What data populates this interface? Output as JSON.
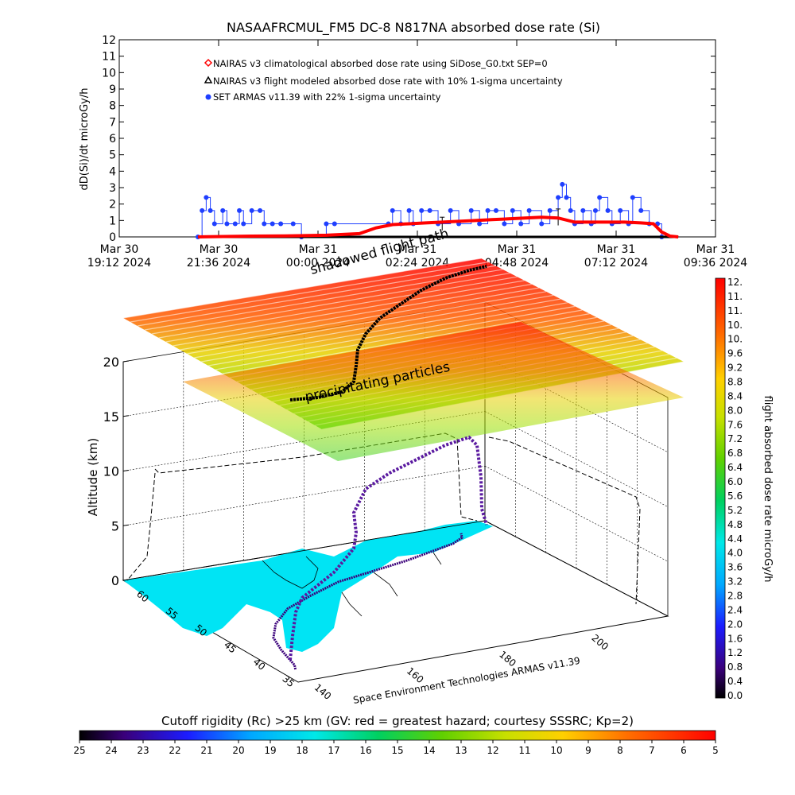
{
  "chart_data": [
    {
      "type": "line",
      "title": "NASAAFRCMUL_FM5 DC-8   N817NA absorbed dose rate (Si)",
      "ylabel": "dD(Si)/dt microGy/h",
      "ylim": [
        0,
        12
      ],
      "yticks": [
        "0",
        "1",
        "2",
        "3",
        "4",
        "5",
        "6",
        "7",
        "8",
        "9",
        "10",
        "11",
        "12"
      ],
      "xlim_hours": [
        0,
        14.4
      ],
      "xticks": [
        {
          "h": 0.0,
          "line1": "Mar 30",
          "line2": "19:12 2024"
        },
        {
          "h": 2.4,
          "line1": "Mar 30",
          "line2": "21:36 2024"
        },
        {
          "h": 4.8,
          "line1": "Mar 31",
          "line2": "00:00 2024"
        },
        {
          "h": 7.2,
          "line1": "Mar 31",
          "line2": "02:24 2024"
        },
        {
          "h": 9.6,
          "line1": "Mar 31",
          "line2": "04:48 2024"
        },
        {
          "h": 12.0,
          "line1": "Mar 31",
          "line2": "07:12 2024"
        },
        {
          "h": 14.4,
          "line1": "Mar 31",
          "line2": "09:36 2024"
        }
      ],
      "legend_position": "top-left",
      "series": [
        {
          "name": "NAIRAS v3 climatological absorbed dose rate using SiDose_G0.txt SEP=0",
          "marker": "diamond",
          "color": "#ff0000",
          "points": [
            [
              1.9,
              0.0
            ],
            [
              3.2,
              0.05
            ],
            [
              4.0,
              0.06
            ],
            [
              5.0,
              0.1
            ],
            [
              5.8,
              0.2
            ],
            [
              6.2,
              0.55
            ],
            [
              6.6,
              0.75
            ],
            [
              7.0,
              0.8
            ],
            [
              7.4,
              0.85
            ],
            [
              7.8,
              0.9
            ],
            [
              8.2,
              0.95
            ],
            [
              8.6,
              1.0
            ],
            [
              9.0,
              1.05
            ],
            [
              9.4,
              1.1
            ],
            [
              9.8,
              1.15
            ],
            [
              10.2,
              1.2
            ],
            [
              10.6,
              1.15
            ],
            [
              11.0,
              0.9
            ],
            [
              11.4,
              0.9
            ],
            [
              11.8,
              0.9
            ],
            [
              12.2,
              0.9
            ],
            [
              12.6,
              0.85
            ],
            [
              12.9,
              0.8
            ],
            [
              13.1,
              0.3
            ],
            [
              13.3,
              0.05
            ],
            [
              13.5,
              0.0
            ]
          ]
        },
        {
          "name": "NAIRAS v3 flight modeled absorbed dose rate with 10% 1-sigma uncertainty",
          "marker": "triangle",
          "color": "#000000",
          "points": [
            [
              1.9,
              0.0
            ],
            [
              4.0,
              0.0
            ],
            [
              7.0,
              0.0
            ],
            [
              10.0,
              0.0
            ],
            [
              13.0,
              0.0
            ],
            [
              13.5,
              0.0
            ]
          ],
          "error_bars": [
            [
              7.8,
              0.8,
              0.4
            ],
            [
              10.6,
              1.2,
              0.5
            ]
          ]
        },
        {
          "name": "SET ARMAS v11.39 with 22% 1-sigma uncertainty",
          "marker": "circle",
          "color": "#1f3fff",
          "points": [
            [
              1.9,
              0.0
            ],
            [
              2.0,
              1.6
            ],
            [
              2.1,
              2.4
            ],
            [
              2.2,
              1.6
            ],
            [
              2.3,
              0.8
            ],
            [
              2.5,
              1.6
            ],
            [
              2.6,
              0.8
            ],
            [
              2.8,
              0.8
            ],
            [
              2.9,
              1.6
            ],
            [
              3.0,
              0.8
            ],
            [
              3.2,
              1.6
            ],
            [
              3.4,
              1.6
            ],
            [
              3.5,
              0.8
            ],
            [
              3.7,
              0.8
            ],
            [
              3.9,
              0.8
            ],
            [
              4.2,
              0.8
            ],
            [
              4.4,
              0.0
            ],
            [
              5.0,
              0.8
            ],
            [
              5.2,
              0.8
            ],
            [
              6.5,
              0.8
            ],
            [
              6.6,
              1.6
            ],
            [
              6.8,
              0.8
            ],
            [
              7.0,
              1.6
            ],
            [
              7.1,
              0.8
            ],
            [
              7.3,
              1.6
            ],
            [
              7.5,
              1.6
            ],
            [
              7.7,
              0.8
            ],
            [
              8.0,
              1.6
            ],
            [
              8.2,
              0.8
            ],
            [
              8.5,
              1.6
            ],
            [
              8.7,
              0.8
            ],
            [
              8.9,
              1.6
            ],
            [
              9.1,
              1.6
            ],
            [
              9.3,
              0.8
            ],
            [
              9.5,
              1.6
            ],
            [
              9.7,
              0.8
            ],
            [
              9.9,
              1.6
            ],
            [
              10.2,
              0.8
            ],
            [
              10.4,
              1.6
            ],
            [
              10.6,
              2.4
            ],
            [
              10.7,
              3.2
            ],
            [
              10.8,
              2.4
            ],
            [
              10.9,
              1.6
            ],
            [
              11.0,
              0.8
            ],
            [
              11.2,
              1.6
            ],
            [
              11.4,
              0.8
            ],
            [
              11.5,
              1.6
            ],
            [
              11.6,
              2.4
            ],
            [
              11.8,
              1.6
            ],
            [
              11.9,
              0.8
            ],
            [
              12.1,
              1.6
            ],
            [
              12.3,
              0.8
            ],
            [
              12.4,
              2.4
            ],
            [
              12.6,
              1.6
            ],
            [
              12.8,
              0.8
            ],
            [
              13.0,
              0.8
            ],
            [
              13.1,
              0.0
            ]
          ]
        }
      ]
    },
    {
      "type": "scatter",
      "zlabel": "Altitude (km)",
      "zlim": [
        0,
        20
      ],
      "zticks": [
        "0",
        "5",
        "10",
        "15",
        "20"
      ],
      "lat_ticks": [
        "60",
        "55",
        "50",
        "45",
        "40",
        "35"
      ],
      "lon_ticks": [
        "140",
        "160",
        "180",
        "200"
      ],
      "annotations": [
        "shadowed flight path",
        "precipitating particles"
      ],
      "credit": "Space Environment Technologies ARMAS v11.39",
      "series": [
        {
          "name": "flight track",
          "points_lon_lat_alt": [
            [
              138,
              36,
              0
            ],
            [
              139,
              37,
              3
            ],
            [
              140,
              39,
              6
            ],
            [
              141,
              41,
              8
            ],
            [
              143,
              44,
              10
            ],
            [
              147,
              47,
              11
            ],
            [
              153,
              50,
              11.5
            ],
            [
              160,
              52,
              11.8
            ],
            [
              168,
              54,
              11.8
            ],
            [
              176,
              55,
              11.8
            ],
            [
              184,
              56,
              11.8
            ],
            [
              190,
              57,
              11.6
            ],
            [
              196,
              58,
              11.0
            ],
            [
              199,
              59,
              8
            ],
            [
              200,
              60,
              5
            ],
            [
              200,
              60,
              3
            ]
          ]
        }
      ]
    },
    {
      "type": "heatmap",
      "title": "flight absorbed dose rate microGy/h",
      "colorbar_ticks": [
        "12.",
        "11.",
        "11.",
        "10.",
        "10.",
        "9.6",
        "9.2",
        "8.8",
        "8.4",
        "8.0",
        "7.6",
        "7.2",
        "6.8",
        "6.4",
        "6.0",
        "5.6",
        "5.2",
        "4.8",
        "4.4",
        "4.0",
        "3.6",
        "3.2",
        "2.8",
        "2.4",
        "2.0",
        "1.6",
        "1.2",
        "0.8",
        "0.4",
        "0.0"
      ]
    },
    {
      "type": "heatmap",
      "title": "Cutoff rigidity (Rc) >25 km (GV: red = greatest hazard; courtesy SSSRC; Kp=2)",
      "colorbar_ticks": [
        "25",
        "24",
        "23",
        "22",
        "21",
        "20",
        "19",
        "18",
        "17",
        "16",
        "15",
        "14",
        "13",
        "12",
        "11",
        "10",
        "9",
        "8",
        "7",
        "6",
        "5"
      ]
    }
  ]
}
